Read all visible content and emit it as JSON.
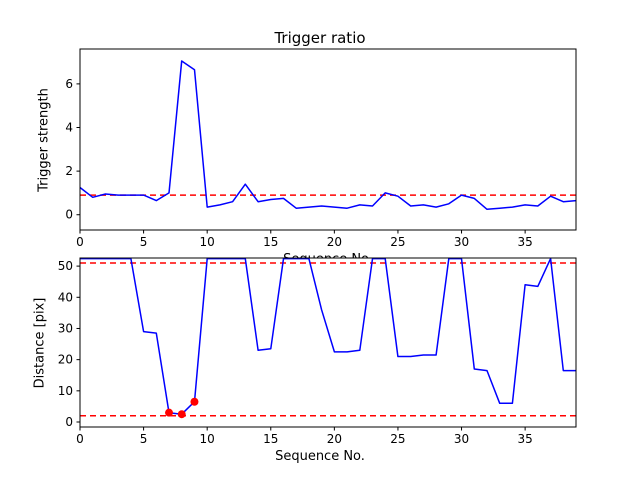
{
  "figure": {
    "background": "#ffffff",
    "line_color": "#0000ff",
    "threshold_color": "#ff0000",
    "marker_color": "#ff0000"
  },
  "chart_data": [
    {
      "type": "line",
      "title": "Trigger ratio",
      "xlabel": "Sequence No.",
      "ylabel": "Trigger strength",
      "xlim": [
        0,
        39
      ],
      "ylim": [
        -0.7,
        7.6
      ],
      "xticks": [
        0,
        5,
        10,
        15,
        20,
        25,
        30,
        35
      ],
      "yticks": [
        0,
        2,
        4,
        6
      ],
      "grid": false,
      "x": [
        0,
        1,
        2,
        3,
        4,
        5,
        6,
        7,
        8,
        9,
        10,
        11,
        12,
        13,
        14,
        15,
        16,
        17,
        18,
        19,
        20,
        21,
        22,
        23,
        24,
        25,
        26,
        27,
        28,
        29,
        30,
        31,
        32,
        33,
        34,
        35,
        36,
        37,
        38,
        39
      ],
      "series": [
        {
          "name": "trigger-strength",
          "color": "#0000ff",
          "values": [
            1.25,
            0.8,
            0.95,
            0.9,
            0.9,
            0.9,
            0.65,
            1.0,
            7.05,
            6.65,
            0.35,
            0.45,
            0.6,
            1.4,
            0.6,
            0.7,
            0.75,
            0.3,
            0.35,
            0.4,
            0.35,
            0.3,
            0.45,
            0.4,
            1.0,
            0.85,
            0.4,
            0.45,
            0.35,
            0.5,
            0.9,
            0.75,
            0.25,
            0.3,
            0.35,
            0.45,
            0.4,
            0.85,
            0.6,
            0.65
          ]
        }
      ],
      "thresholds": [
        0.9
      ],
      "threshold_style": "dashed",
      "threshold_color": "#ff0000",
      "markers": {
        "color": "#ff0000",
        "points": []
      }
    },
    {
      "type": "line",
      "title": "",
      "xlabel": "Sequence No.",
      "ylabel": "Distance [pix]",
      "xlim": [
        0,
        39
      ],
      "ylim": [
        -1.6,
        52.6
      ],
      "xticks": [
        0,
        5,
        10,
        15,
        20,
        25,
        30,
        35
      ],
      "yticks": [
        0,
        10,
        20,
        30,
        40,
        50
      ],
      "grid": false,
      "x": [
        0,
        1,
        2,
        3,
        4,
        5,
        6,
        7,
        8,
        9,
        10,
        11,
        12,
        13,
        14,
        15,
        16,
        17,
        18,
        19,
        20,
        21,
        22,
        23,
        24,
        25,
        26,
        27,
        28,
        29,
        30,
        31,
        32,
        33,
        34,
        35,
        36,
        37,
        38,
        39
      ],
      "series": [
        {
          "name": "distance-pix",
          "color": "#0000ff",
          "values": [
            52.4,
            52.4,
            52.4,
            52.4,
            52.4,
            29,
            28.5,
            3,
            2.5,
            6.5,
            52.4,
            52.4,
            52.4,
            52.4,
            23,
            23.5,
            52.4,
            52.4,
            52.4,
            36,
            22.5,
            22.5,
            23,
            52.4,
            52.4,
            21,
            21,
            21.5,
            21.5,
            52.4,
            52.4,
            17,
            16.5,
            6,
            6,
            44,
            43.5,
            52.4,
            16.5,
            16.5
          ]
        }
      ],
      "thresholds": [
        51,
        2
      ],
      "threshold_style": "dashed",
      "threshold_color": "#ff0000",
      "markers": {
        "color": "#ff0000",
        "points": [
          [
            7,
            3
          ],
          [
            8,
            2.5
          ],
          [
            9,
            6.5
          ]
        ]
      }
    }
  ]
}
